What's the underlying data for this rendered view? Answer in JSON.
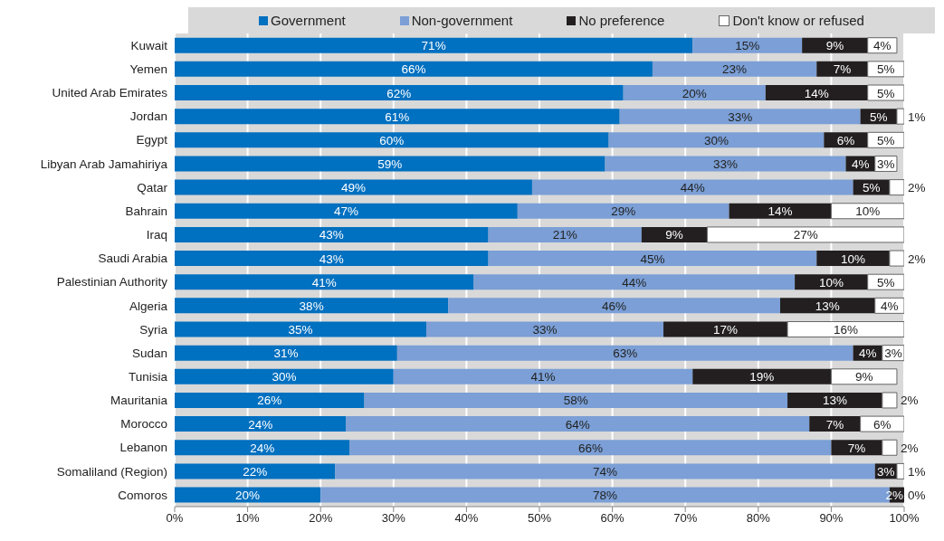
{
  "chart_data": {
    "type": "bar",
    "orientation": "horizontal",
    "stacked": true,
    "legend": "top",
    "grid": "x",
    "categories": [
      "Kuwait",
      "Yemen",
      "United Arab Emirates",
      "Jordan",
      "Egypt",
      "Libyan Arab Jamahiriya",
      "Qatar",
      "Bahrain",
      "Iraq",
      "Saudi Arabia",
      "Palestinian Authority",
      "Algeria",
      "Syria",
      "Sudan",
      "Tunisia",
      "Mauritania",
      "Morocco",
      "Lebanon",
      "Somaliland (Region)",
      "Comoros"
    ],
    "series": [
      {
        "name": "Government",
        "color": "#0070c0",
        "values": [
          71,
          65.5,
          61.5,
          61,
          59.5,
          59,
          49,
          47,
          43,
          43,
          41,
          37.5,
          34.5,
          30.5,
          30,
          26,
          23.5,
          24,
          22,
          20
        ],
        "value_labels": [
          "71%",
          "66%",
          "62%",
          "61%",
          "60%",
          "59%",
          "49%",
          "47%",
          "43%",
          "43%",
          "41%",
          "38%",
          "35%",
          "31%",
          "30%",
          "26%",
          "24%",
          "24%",
          "22%",
          "20%"
        ]
      },
      {
        "name": "Non-government",
        "color": "#7b9fd6",
        "values": [
          15,
          22.5,
          19.5,
          33,
          29.5,
          33,
          44,
          29,
          21,
          45,
          44,
          45.5,
          32.5,
          62.5,
          41,
          58,
          63.5,
          66,
          74,
          78
        ],
        "value_labels": [
          "15%",
          "23%",
          "20%",
          "33%",
          "30%",
          "33%",
          "44%",
          "29%",
          "21%",
          "45%",
          "44%",
          "46%",
          "33%",
          "63%",
          "41%",
          "58%",
          "64%",
          "66%",
          "74%",
          "78%"
        ]
      },
      {
        "name": "No preference",
        "color": "#231f20",
        "values": [
          9,
          7,
          14,
          5,
          6,
          4,
          5,
          14,
          9,
          10,
          10,
          13,
          17,
          4,
          19,
          13,
          7,
          7,
          3,
          2
        ],
        "value_labels": [
          "9%",
          "7%",
          "14%",
          "5%",
          "6%",
          "4%",
          "5%",
          "14%",
          "9%",
          "10%",
          "10%",
          "13%",
          "17%",
          "4%",
          "19%",
          "13%",
          "7%",
          "7%",
          "3%",
          "2%"
        ]
      },
      {
        "name": "Don't know or refused",
        "color": "#ffffff",
        "values": [
          4,
          5,
          5,
          1,
          5,
          3,
          2,
          10,
          27,
          2,
          5,
          4,
          16,
          3,
          9,
          2,
          6,
          2,
          1,
          0
        ],
        "value_labels": [
          "4%",
          "5%",
          "5%",
          "1%",
          "5%",
          "3%",
          "2%",
          "10%",
          "27%",
          "2%",
          "5%",
          "4%",
          "16%",
          "3%",
          "9%",
          "2%",
          "6%",
          "2%",
          "1%",
          "0%"
        ]
      }
    ],
    "xlim": [
      0,
      100
    ],
    "xticks": [
      {
        "value": 0,
        "label": "0%"
      },
      {
        "value": 10,
        "label": "10%"
      },
      {
        "value": 20,
        "label": "20%"
      },
      {
        "value": 30,
        "label": "30%"
      },
      {
        "value": 40,
        "label": "40%"
      },
      {
        "value": 50,
        "label": "50%"
      },
      {
        "value": 60,
        "label": "60%"
      },
      {
        "value": 70,
        "label": "70%"
      },
      {
        "value": 80,
        "label": "80%"
      },
      {
        "value": 90,
        "label": "90%"
      },
      {
        "value": 100,
        "label": "100%"
      }
    ]
  }
}
